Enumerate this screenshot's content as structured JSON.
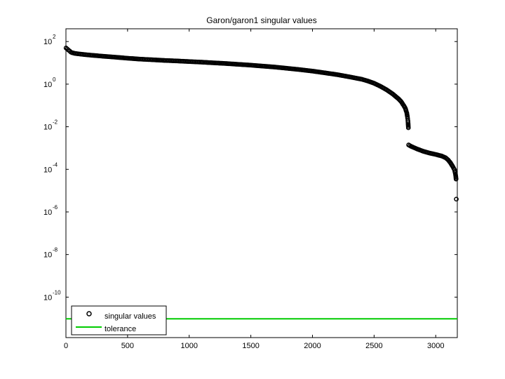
{
  "chart_data": {
    "type": "scatter",
    "title": "Garon/garon1 singular values",
    "xlabel": "",
    "ylabel": "",
    "xlim": [
      0,
      3175
    ],
    "ylim_log10": [
      -11.9,
      2.6
    ],
    "y_scale": "log",
    "grid": false,
    "legend_position": "bottom-left",
    "x_ticks": [
      0,
      500,
      1000,
      1500,
      2000,
      2500,
      3000
    ],
    "y_ticks": [
      {
        "base": "10",
        "exp": "2",
        "value": 100
      },
      {
        "base": "10",
        "exp": "0",
        "value": 1
      },
      {
        "base": "10",
        "exp": "-2",
        "value": 0.01
      },
      {
        "base": "10",
        "exp": "-4",
        "value": 0.0001
      },
      {
        "base": "10",
        "exp": "-6",
        "value": 1e-06
      },
      {
        "base": "10",
        "exp": "-8",
        "value": 1e-08
      },
      {
        "base": "10",
        "exp": "-10",
        "value": 1e-10
      }
    ],
    "series": [
      {
        "name": "singular values",
        "marker": "circle-open",
        "color": "#000000",
        "points": [
          [
            1,
            50
          ],
          [
            10,
            45
          ],
          [
            20,
            40
          ],
          [
            30,
            36
          ],
          [
            40,
            32
          ],
          [
            50,
            30
          ],
          [
            70,
            28
          ],
          [
            100,
            26.5
          ],
          [
            150,
            24.5
          ],
          [
            200,
            23
          ],
          [
            300,
            20.5
          ],
          [
            400,
            18.5
          ],
          [
            500,
            16.5
          ],
          [
            600,
            15
          ],
          [
            700,
            14
          ],
          [
            800,
            13
          ],
          [
            900,
            12.3
          ],
          [
            1000,
            11.5
          ],
          [
            1100,
            10.8
          ],
          [
            1200,
            10
          ],
          [
            1300,
            9.3
          ],
          [
            1400,
            8.5
          ],
          [
            1500,
            7.8
          ],
          [
            1600,
            7
          ],
          [
            1700,
            6.3
          ],
          [
            1800,
            5.5
          ],
          [
            1900,
            4.8
          ],
          [
            2000,
            4.1
          ],
          [
            2100,
            3.4
          ],
          [
            2200,
            2.8
          ],
          [
            2300,
            2.2
          ],
          [
            2400,
            1.7
          ],
          [
            2450,
            1.4
          ],
          [
            2500,
            1.1
          ],
          [
            2550,
            0.8
          ],
          [
            2600,
            0.55
          ],
          [
            2650,
            0.35
          ],
          [
            2700,
            0.2
          ],
          [
            2720,
            0.15
          ],
          [
            2740,
            0.1
          ],
          [
            2750,
            0.08
          ],
          [
            2755,
            0.07
          ],
          [
            2760,
            0.055
          ],
          [
            2765,
            0.045
          ],
          [
            2770,
            0.03
          ],
          [
            2772,
            0.025
          ],
          [
            2774,
            0.02
          ],
          [
            2776,
            0.014
          ],
          [
            2778,
            0.009
          ],
          [
            2780,
            0.0014
          ],
          [
            2790,
            0.0013
          ],
          [
            2800,
            0.0012
          ],
          [
            2850,
            0.0009
          ],
          [
            2900,
            0.0007
          ],
          [
            2950,
            0.00058
          ],
          [
            3000,
            0.0005
          ],
          [
            3050,
            0.00042
          ],
          [
            3080,
            0.00035
          ],
          [
            3100,
            0.00028
          ],
          [
            3120,
            0.0002
          ],
          [
            3140,
            0.00013
          ],
          [
            3150,
            0.0001
          ],
          [
            3155,
            8e-05
          ],
          [
            3160,
            6e-05
          ],
          [
            3163,
            4.5e-05
          ],
          [
            3165,
            3.5e-05
          ],
          [
            3167,
            4e-06
          ]
        ]
      },
      {
        "name": "tolerance",
        "marker": "line",
        "color": "#00cc00",
        "value": 9.6e-12
      }
    ]
  }
}
